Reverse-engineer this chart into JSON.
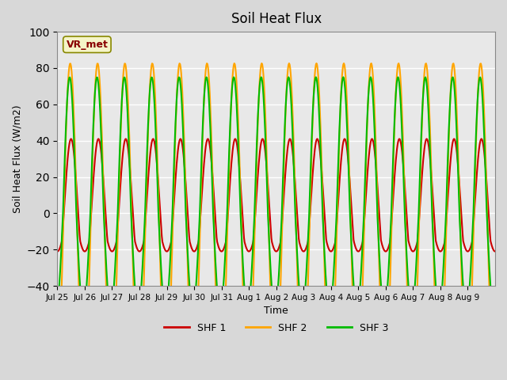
{
  "title": "Soil Heat Flux",
  "ylabel": "Soil Heat Flux (W/m2)",
  "xlabel": "Time",
  "ylim": [
    -40,
    100
  ],
  "yticks": [
    -40,
    -20,
    0,
    20,
    40,
    60,
    80,
    100
  ],
  "bg_color": "#d8d8d8",
  "plot_bg_color": "#e8e8e8",
  "grid_color": "#ffffff",
  "legend_label": "VR_met",
  "series_names": [
    "SHF 1",
    "SHF 2",
    "SHF 3"
  ],
  "series_colors": [
    "#cc0000",
    "#ffa500",
    "#00bb00"
  ],
  "series_linewidths": [
    1.5,
    1.5,
    1.5
  ],
  "xtick_labels": [
    "Jul 25",
    "Jul 26",
    "Jul 27",
    "Jul 28",
    "Jul 29",
    "Jul 30",
    "Jul 31",
    "Aug 1",
    "Aug 2",
    "Aug 3",
    "Aug 4",
    "Aug 5",
    "Aug 6",
    "Aug 7",
    "Aug 8",
    "Aug 9"
  ],
  "n_days": 16,
  "points_per_day": 48
}
